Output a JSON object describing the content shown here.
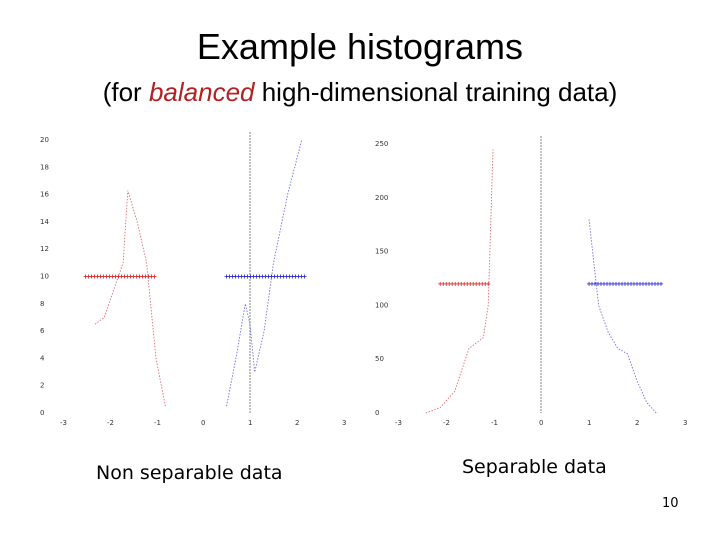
{
  "slide": {
    "title": "Example histograms",
    "subtitle_prefix": "(for ",
    "subtitle_emphasis": "balanced",
    "subtitle_suffix": " high-dimensional training data)",
    "page_number": "10",
    "accent_color": "#b22222"
  },
  "panels": {
    "left": {
      "caption": "Non separable data"
    },
    "right": {
      "caption": "Separable data"
    }
  },
  "chart_data": [
    {
      "type": "line",
      "xlim": [
        -3,
        3
      ],
      "ylim": [
        0,
        20
      ],
      "xticks": [
        "-3",
        "-2",
        "-1",
        "0",
        "1",
        "2",
        "3"
      ],
      "yticks": [
        "0",
        "2",
        "4",
        "6",
        "8",
        "10",
        "12",
        "14",
        "16",
        "18",
        "20"
      ],
      "series": [
        {
          "color": "#e07070",
          "x": [
            -2.3,
            -2.1,
            -1.9,
            -1.7,
            -1.6,
            -1.4,
            -1.2,
            -1.0,
            -0.8
          ],
          "y": [
            6.5,
            7,
            9,
            11,
            16.3,
            14,
            11,
            4,
            0.5
          ]
        },
        {
          "color": "#7070e0",
          "x": [
            0.5,
            0.7,
            0.9,
            1.0,
            1.1,
            1.3,
            1.5,
            1.8,
            2.1
          ],
          "y": [
            0.5,
            4,
            8,
            6.5,
            3,
            6,
            11,
            16,
            20
          ]
        }
      ],
      "vertical_line_x": 1.0,
      "points": [
        {
          "color": "#d62020",
          "y": 10,
          "x_from": -2.5,
          "x_to": -1.0
        },
        {
          "color": "#2020d6",
          "y": 10,
          "x_from": 0.5,
          "x_to": 2.2
        }
      ]
    },
    {
      "type": "line",
      "xlim": [
        -3,
        3
      ],
      "ylim": [
        0,
        250
      ],
      "xticks": [
        "-3",
        "-2",
        "-1",
        "0",
        "1",
        "2",
        "3"
      ],
      "yticks": [
        "0",
        "50",
        "100",
        "150",
        "200",
        "250"
      ],
      "series": [
        {
          "color": "#e07070",
          "x": [
            -2.4,
            -2.1,
            -1.8,
            -1.5,
            -1.2,
            -1.1,
            -1.0
          ],
          "y": [
            0,
            5,
            20,
            60,
            70,
            100,
            245
          ]
        },
        {
          "color": "#7070e0",
          "x": [
            1.0,
            1.2,
            1.4,
            1.6,
            1.8,
            2.0,
            2.2,
            2.4
          ],
          "y": [
            180,
            100,
            75,
            60,
            55,
            30,
            10,
            0
          ]
        }
      ],
      "vertical_line_x": 0.0,
      "points": [
        {
          "color": "#d62020",
          "y": 120,
          "x_from": -2.1,
          "x_to": -1.05
        },
        {
          "color": "#2020d6",
          "y": 120,
          "x_from": 1.0,
          "x_to": 2.5
        }
      ]
    }
  ]
}
